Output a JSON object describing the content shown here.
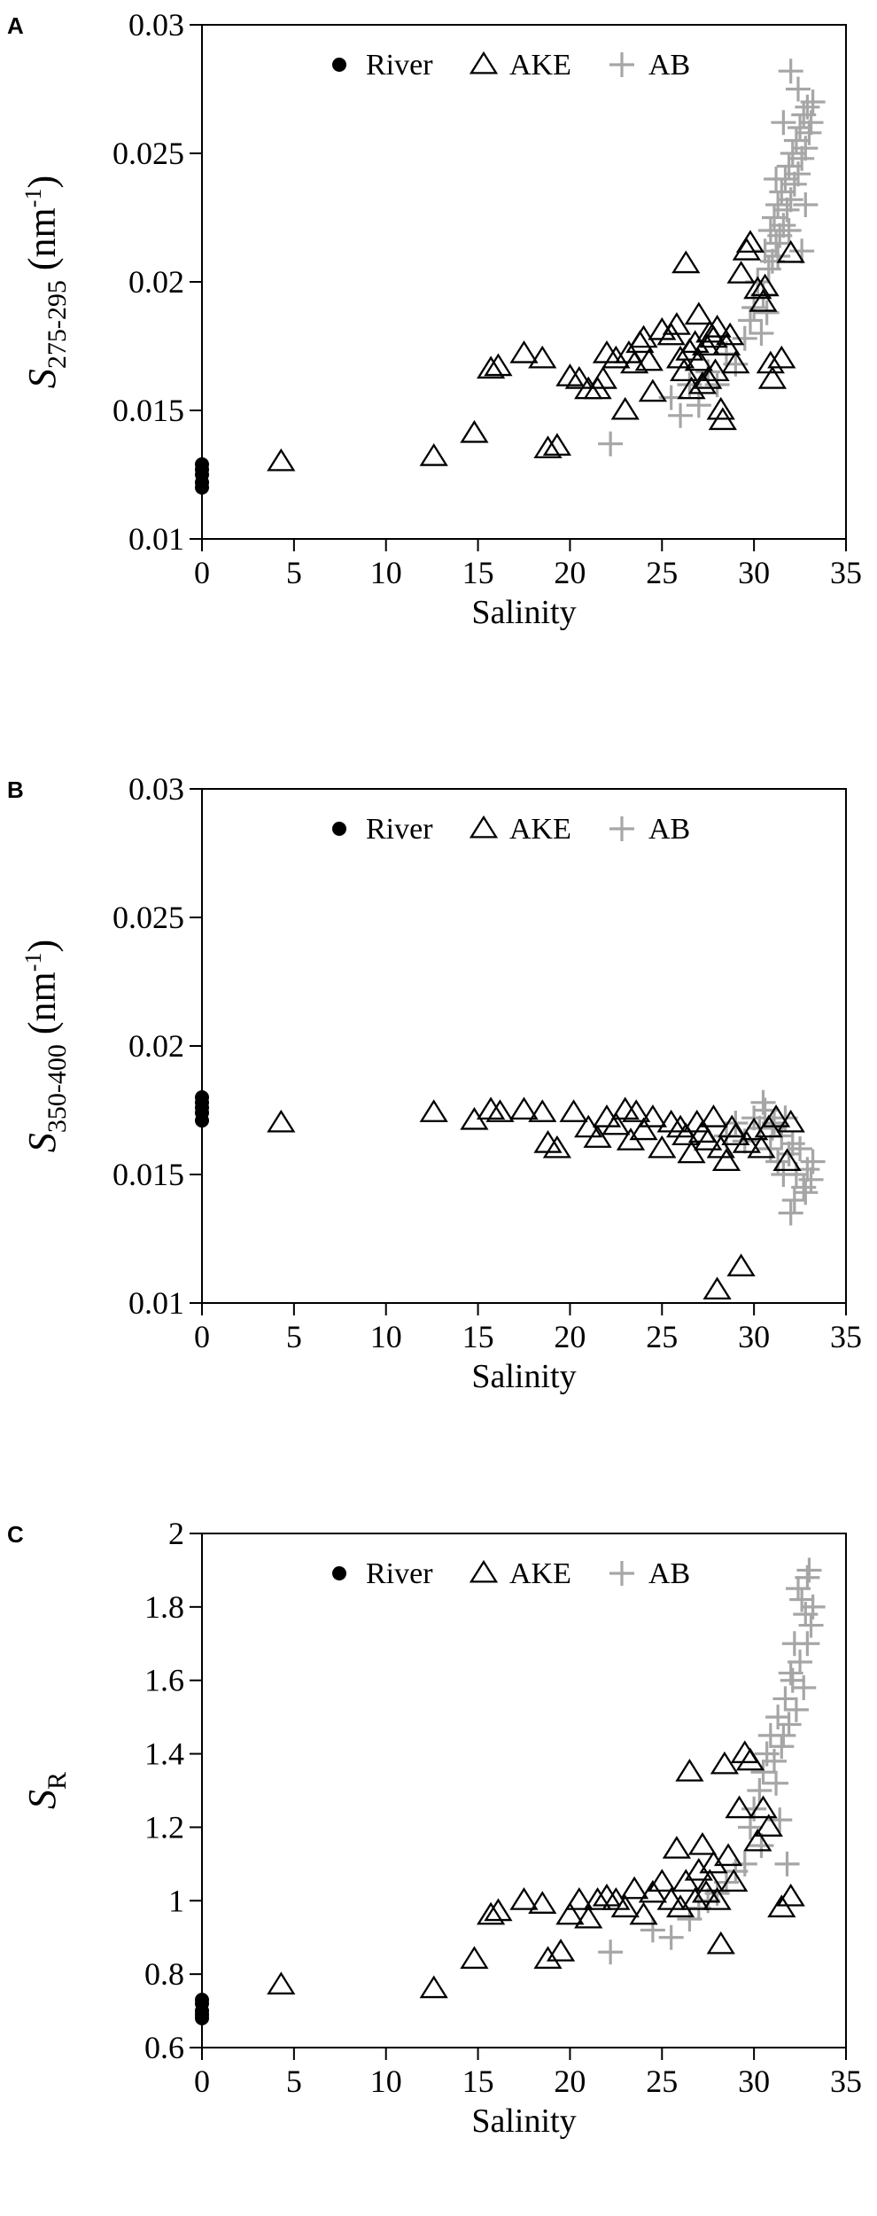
{
  "chart_data": [
    {
      "panel": "A",
      "type": "scatter",
      "xlabel": "Salinity",
      "ylabel": {
        "main": "S",
        "sub": "275-295",
        "unit_pre": " (nm",
        "unit_sup": "-1",
        "unit_post": ")"
      },
      "xlim": [
        0,
        35
      ],
      "ylim": [
        0.01,
        0.03
      ],
      "xticks": [
        0,
        5,
        10,
        15,
        20,
        25,
        30,
        35
      ],
      "yticks": [
        0.01,
        0.015,
        0.02,
        0.025,
        0.03
      ],
      "ytick_labels": [
        "0.01",
        "0.015",
        "0.02",
        "0.025",
        "0.03"
      ],
      "grid": false,
      "legend": {
        "placement": "top-center",
        "entries": [
          "River",
          "AKE",
          "AB"
        ]
      },
      "series": [
        {
          "name": "River",
          "marker": "filled-circle",
          "color": "#000000",
          "x": [
            0,
            0,
            0,
            0,
            0
          ],
          "y": [
            0.012,
            0.0122,
            0.0125,
            0.0127,
            0.0129
          ]
        },
        {
          "name": "AKE",
          "marker": "open-triangle",
          "color": "#000000",
          "x": [
            4.3,
            12.6,
            14.8,
            15.7,
            16.1,
            17.5,
            18.5,
            18.8,
            19.3,
            20.0,
            20.5,
            21.0,
            21.5,
            21.8,
            22.0,
            22.5,
            23.0,
            23.2,
            23.5,
            23.8,
            24.0,
            24.3,
            24.5,
            25.0,
            25.5,
            25.8,
            26.0,
            26.2,
            26.3,
            26.5,
            26.6,
            26.8,
            27.0,
            27.0,
            27.2,
            27.4,
            27.5,
            27.6,
            27.8,
            27.9,
            28.0,
            28.2,
            28.3,
            28.5,
            28.7,
            29.0,
            29.3,
            29.6,
            29.8,
            30.2,
            30.5,
            30.6,
            30.9,
            31.0,
            31.5,
            32.0
          ],
          "y": [
            0.013,
            0.0132,
            0.0141,
            0.0166,
            0.0167,
            0.0172,
            0.017,
            0.0135,
            0.0136,
            0.0163,
            0.0162,
            0.0158,
            0.0158,
            0.0162,
            0.0172,
            0.017,
            0.015,
            0.0172,
            0.0168,
            0.0176,
            0.0178,
            0.0169,
            0.0157,
            0.0181,
            0.0179,
            0.0183,
            0.017,
            0.0165,
            0.0207,
            0.0173,
            0.0158,
            0.0176,
            0.0169,
            0.0187,
            0.016,
            0.0175,
            0.0162,
            0.018,
            0.0178,
            0.0165,
            0.0182,
            0.015,
            0.0146,
            0.0175,
            0.0179,
            0.0168,
            0.0203,
            0.0212,
            0.0215,
            0.0197,
            0.0192,
            0.0198,
            0.0168,
            0.0162,
            0.017,
            0.0211
          ]
        },
        {
          "name": "AB",
          "marker": "plus",
          "color": "#a6a6a6",
          "x": [
            22.2,
            25.5,
            26.0,
            26.5,
            27.0,
            27.5,
            28.0,
            28.5,
            29.0,
            29.5,
            29.8,
            30.0,
            30.2,
            30.5,
            30.6,
            30.8,
            30.9,
            31.0,
            31.1,
            31.2,
            31.3,
            31.4,
            31.5,
            31.6,
            31.7,
            31.8,
            31.9,
            32.0,
            32.1,
            32.2,
            32.3,
            32.4,
            32.5,
            32.6,
            32.7,
            32.8,
            32.9,
            33.0,
            33.1,
            33.2,
            31.2,
            31.6,
            32.0,
            32.4,
            32.8,
            30.4,
            30.7,
            31.3,
            31.9,
            32.6
          ],
          "y": [
            0.0137,
            0.0155,
            0.0148,
            0.016,
            0.0152,
            0.0165,
            0.016,
            0.0172,
            0.0168,
            0.0178,
            0.0185,
            0.019,
            0.02,
            0.0195,
            0.0212,
            0.0205,
            0.022,
            0.0208,
            0.0225,
            0.0215,
            0.023,
            0.0218,
            0.0235,
            0.0222,
            0.024,
            0.0228,
            0.0245,
            0.0232,
            0.025,
            0.0238,
            0.0255,
            0.0242,
            0.026,
            0.0248,
            0.0265,
            0.0252,
            0.0268,
            0.0258,
            0.0262,
            0.027,
            0.024,
            0.0262,
            0.0282,
            0.0275,
            0.023,
            0.018,
            0.0188,
            0.021,
            0.022,
            0.0212
          ]
        }
      ]
    },
    {
      "panel": "B",
      "type": "scatter",
      "xlabel": "Salinity",
      "ylabel": {
        "main": "S",
        "sub": "350-400",
        "unit_pre": " (nm",
        "unit_sup": "-1",
        "unit_post": ")"
      },
      "xlim": [
        0,
        35
      ],
      "ylim": [
        0.01,
        0.03
      ],
      "xticks": [
        0,
        5,
        10,
        15,
        20,
        25,
        30,
        35
      ],
      "yticks": [
        0.01,
        0.015,
        0.02,
        0.025,
        0.03
      ],
      "ytick_labels": [
        "0.01",
        "0.015",
        "0.02",
        "0.025",
        "0.03"
      ],
      "grid": false,
      "legend": {
        "placement": "top-center",
        "entries": [
          "River",
          "AKE",
          "AB"
        ]
      },
      "series": [
        {
          "name": "River",
          "marker": "filled-circle",
          "color": "#000000",
          "x": [
            0,
            0,
            0,
            0,
            0
          ],
          "y": [
            0.0171,
            0.0174,
            0.0176,
            0.0178,
            0.018
          ]
        },
        {
          "name": "AKE",
          "marker": "open-triangle",
          "color": "#000000",
          "x": [
            4.3,
            12.6,
            14.8,
            15.7,
            16.2,
            17.5,
            18.5,
            18.8,
            19.3,
            20.2,
            21.0,
            21.5,
            22.0,
            22.5,
            23.0,
            23.3,
            23.6,
            24.0,
            24.5,
            25.0,
            25.5,
            26.0,
            26.3,
            26.6,
            26.9,
            27.2,
            27.5,
            27.8,
            28.0,
            28.2,
            28.5,
            28.8,
            29.0,
            29.3,
            29.6,
            30.0,
            30.4,
            30.8,
            31.2,
            31.8,
            32.0
          ],
          "y": [
            0.017,
            0.0174,
            0.0171,
            0.0175,
            0.0174,
            0.0175,
            0.0174,
            0.0162,
            0.016,
            0.0174,
            0.0168,
            0.0164,
            0.0172,
            0.0169,
            0.0175,
            0.0163,
            0.0174,
            0.0167,
            0.0172,
            0.016,
            0.017,
            0.0168,
            0.0165,
            0.0158,
            0.017,
            0.0166,
            0.0163,
            0.0172,
            0.0105,
            0.016,
            0.0155,
            0.0168,
            0.0165,
            0.0114,
            0.0162,
            0.0167,
            0.016,
            0.0168,
            0.0172,
            0.0155,
            0.017
          ]
        },
        {
          "name": "AB",
          "marker": "plus",
          "color": "#a6a6a6",
          "x": [
            28.5,
            29.0,
            29.5,
            30.0,
            30.3,
            30.6,
            30.9,
            31.1,
            31.3,
            31.5,
            31.7,
            31.9,
            32.1,
            32.3,
            32.5,
            32.7,
            32.9,
            33.1,
            33.2,
            31.0,
            31.6,
            32.2,
            32.8,
            30.5,
            32.0
          ],
          "y": [
            0.0165,
            0.017,
            0.0163,
            0.0172,
            0.0168,
            0.0175,
            0.016,
            0.017,
            0.0155,
            0.0165,
            0.0172,
            0.0158,
            0.0162,
            0.015,
            0.016,
            0.0145,
            0.0152,
            0.0148,
            0.0155,
            0.0168,
            0.015,
            0.014,
            0.0143,
            0.0178,
            0.0135
          ]
        }
      ]
    },
    {
      "panel": "C",
      "type": "scatter",
      "xlabel": "Salinity",
      "ylabel": {
        "main": "S",
        "sub": "R",
        "unit_pre": "",
        "unit_sup": "",
        "unit_post": ""
      },
      "xlim": [
        0,
        35
      ],
      "ylim": [
        0.6,
        2
      ],
      "xticks": [
        0,
        5,
        10,
        15,
        20,
        25,
        30,
        35
      ],
      "yticks": [
        0.6,
        0.8,
        1,
        1.2,
        1.4,
        1.6,
        1.8,
        2
      ],
      "ytick_labels": [
        "0.6",
        "0.8",
        "1",
        "1.2",
        "1.4",
        "1.6",
        "1.8",
        "2"
      ],
      "grid": false,
      "legend": {
        "placement": "top-center",
        "entries": [
          "River",
          "AKE",
          "AB"
        ]
      },
      "series": [
        {
          "name": "River",
          "marker": "filled-circle",
          "color": "#000000",
          "x": [
            0,
            0,
            0,
            0,
            0
          ],
          "y": [
            0.68,
            0.69,
            0.7,
            0.72,
            0.73
          ]
        },
        {
          "name": "AKE",
          "marker": "open-triangle",
          "color": "#000000",
          "x": [
            4.3,
            12.6,
            14.8,
            15.7,
            16.1,
            17.5,
            18.5,
            18.8,
            19.5,
            20.0,
            20.5,
            21.0,
            21.5,
            22.0,
            22.5,
            23.0,
            23.5,
            24.0,
            24.5,
            25.0,
            25.5,
            25.8,
            26.0,
            26.3,
            26.5,
            26.8,
            27.0,
            27.2,
            27.4,
            27.6,
            27.8,
            28.0,
            28.2,
            28.4,
            28.6,
            28.9,
            29.2,
            29.5,
            29.8,
            30.2,
            30.5,
            30.8,
            31.5,
            32.0
          ],
          "y": [
            0.77,
            0.76,
            0.84,
            0.96,
            0.97,
            1.0,
            0.99,
            0.84,
            0.86,
            0.96,
            1.0,
            0.95,
            1.0,
            1.01,
            1.0,
            0.98,
            1.03,
            0.96,
            1.02,
            1.05,
            1.0,
            1.14,
            0.98,
            1.05,
            1.35,
            1.0,
            1.08,
            1.15,
            1.02,
            1.05,
            1.1,
            1.0,
            0.88,
            1.37,
            1.12,
            1.05,
            1.25,
            1.4,
            1.38,
            1.16,
            1.25,
            1.2,
            0.98,
            1.01
          ]
        },
        {
          "name": "AB",
          "marker": "plus",
          "color": "#a6a6a6",
          "x": [
            22.2,
            24.5,
            25.5,
            26.5,
            27.0,
            27.5,
            28.0,
            28.5,
            29.0,
            29.5,
            29.8,
            30.0,
            30.3,
            30.5,
            30.7,
            30.9,
            31.1,
            31.3,
            31.5,
            31.7,
            31.9,
            32.1,
            32.3,
            32.5,
            32.7,
            32.9,
            33.1,
            33.2,
            31.2,
            31.6,
            32.0,
            32.4,
            32.8,
            33.0,
            30.4,
            31.4,
            32.2,
            32.6,
            32.9,
            31.8
          ],
          "y": [
            0.86,
            0.92,
            0.9,
            0.95,
            0.98,
            1.0,
            1.02,
            1.05,
            1.08,
            1.1,
            1.2,
            1.25,
            1.3,
            1.35,
            1.4,
            1.45,
            1.38,
            1.5,
            1.42,
            1.55,
            1.48,
            1.6,
            1.52,
            1.65,
            1.58,
            1.7,
            1.75,
            1.8,
            1.32,
            1.45,
            1.62,
            1.85,
            1.78,
            1.9,
            1.15,
            1.22,
            1.7,
            1.82,
            1.88,
            1.1
          ]
        }
      ]
    }
  ]
}
